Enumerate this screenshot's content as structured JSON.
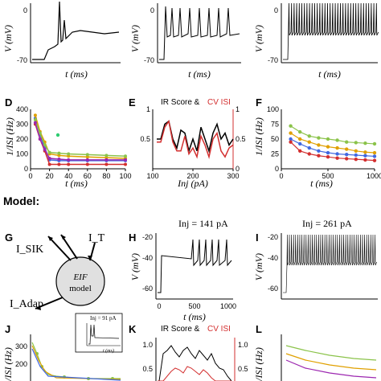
{
  "panels": {
    "top_row": [
      {
        "ylabel": "V (mV)",
        "xlabel": "t (ms)",
        "yticks": [
          "0",
          "-70"
        ]
      },
      {
        "ylabel": "V (mV)",
        "xlabel": "t (ms)",
        "yticks": [
          "0",
          "-70"
        ]
      },
      {
        "ylabel": "V (mV)",
        "xlabel": "t (ms)",
        "yticks": [
          "0",
          "-70"
        ]
      }
    ],
    "D": {
      "label": "D",
      "ylabel": "1/ISI (Hz)",
      "xlabel": "t (ms)"
    },
    "E": {
      "label": "E",
      "title_part1": "IR Score & ",
      "title_part2": "CV ISI",
      "xlabel": "Inj (pA)"
    },
    "F": {
      "label": "F",
      "ylabel": "1/ISI (Hz)",
      "xlabel": "t (ms)"
    },
    "model_heading": "Model:",
    "G": {
      "label": "G",
      "currents": [
        "I_SIK",
        "I_T",
        "I_Adap"
      ],
      "center_top": "EIF",
      "center_bottom": "model"
    },
    "H": {
      "label": "H",
      "title": "Inj = 141 pA",
      "ylabel": "V (mV)",
      "xlabel": "t (ms)"
    },
    "I": {
      "label": "I",
      "title": "Inj = 261 pA",
      "ylabel": "V (mV)"
    },
    "J": {
      "label": "J",
      "inset_title": "Inj = 91 pA",
      "xlabel_inset": "t (ms)",
      "ylabel": "1/ISI (Hz)"
    },
    "K": {
      "label": "K",
      "title_part1": "IR Score & ",
      "title_part2": "CV ISI"
    },
    "L": {
      "label": "L",
      "ylabel": "1/ISI (Hz)"
    }
  },
  "chart_data": [
    {
      "panel": "D",
      "type": "line",
      "xlim": [
        0,
        100
      ],
      "ylim": [
        0,
        400
      ],
      "xticks": [
        0,
        20,
        40,
        60,
        80,
        100
      ],
      "yticks": [
        0,
        100,
        200,
        300,
        400
      ],
      "series": [
        {
          "color": "#4169e1",
          "x": [
            5,
            10,
            15,
            20,
            30,
            40,
            60,
            80,
            100
          ],
          "values": [
            340,
            230,
            140,
            60,
            55,
            55,
            55,
            55,
            55
          ]
        },
        {
          "color": "#d32f2f",
          "x": [
            5,
            10,
            15,
            20,
            30,
            40,
            60,
            80,
            100
          ],
          "values": [
            300,
            200,
            120,
            30,
            30,
            30,
            30,
            30,
            30
          ]
        },
        {
          "color": "#e0a000",
          "x": [
            5,
            10,
            15,
            20,
            30,
            40,
            60,
            80,
            100
          ],
          "values": [
            360,
            250,
            180,
            100,
            90,
            85,
            80,
            75,
            70
          ]
        },
        {
          "color": "#8bc34a",
          "x": [
            5,
            10,
            15,
            20,
            30,
            40,
            60,
            80,
            100
          ],
          "values": [
            330,
            240,
            160,
            110,
            105,
            100,
            95,
            90,
            85
          ]
        },
        {
          "color": "#9c27b0",
          "x": [
            5,
            10,
            15,
            20,
            30,
            40,
            60,
            80,
            100
          ],
          "values": [
            310,
            200,
            130,
            70,
            65,
            60,
            60,
            60,
            60
          ]
        }
      ]
    },
    {
      "panel": "E",
      "type": "line",
      "xlim": [
        100,
        300
      ],
      "ylim_left": [
        0,
        1
      ],
      "ylim_right": [
        0,
        1
      ],
      "xticks": [
        100,
        200,
        300
      ],
      "yticks_left": [
        0.5,
        1
      ],
      "yticks_right": [
        0,
        0.5,
        1
      ],
      "series": [
        {
          "name": "IR Score",
          "color": "#000000",
          "x": [
            110,
            120,
            130,
            140,
            150,
            160,
            170,
            180,
            190,
            200,
            210,
            220,
            230,
            240,
            250,
            260,
            270,
            280,
            290,
            300
          ],
          "values": [
            0.5,
            0.5,
            0.75,
            0.8,
            0.5,
            0.35,
            0.65,
            0.6,
            0.3,
            0.5,
            0.3,
            0.7,
            0.5,
            0.3,
            0.6,
            0.75,
            0.5,
            0.6,
            0.4,
            0.5
          ]
        },
        {
          "name": "CV ISI",
          "color": "#d32f2f",
          "x": [
            110,
            120,
            130,
            140,
            150,
            160,
            170,
            180,
            190,
            200,
            210,
            220,
            230,
            240,
            250,
            260,
            270,
            280,
            290,
            300
          ],
          "values": [
            0.45,
            0.45,
            0.7,
            0.8,
            0.45,
            0.3,
            0.3,
            0.55,
            0.25,
            0.35,
            0.2,
            0.55,
            0.4,
            0.2,
            0.5,
            0.6,
            0.3,
            0.2,
            0.35,
            0.4
          ]
        }
      ]
    },
    {
      "panel": "F",
      "type": "scatter",
      "xlim": [
        0,
        1000
      ],
      "ylim": [
        0,
        100
      ],
      "xticks": [
        0,
        500,
        1000
      ],
      "yticks": [
        0,
        25,
        50,
        75,
        100
      ],
      "series": [
        {
          "color": "#8bc34a",
          "x": [
            100,
            200,
            300,
            400,
            500,
            600,
            700,
            800,
            900,
            1000
          ],
          "values": [
            72,
            62,
            55,
            52,
            50,
            48,
            45,
            44,
            43,
            42
          ]
        },
        {
          "color": "#e0a000",
          "x": [
            100,
            200,
            300,
            400,
            500,
            600,
            700,
            800,
            900,
            1000
          ],
          "values": [
            60,
            50,
            45,
            40,
            37,
            35,
            33,
            30,
            28,
            27
          ]
        },
        {
          "color": "#4169e1",
          "x": [
            100,
            200,
            300,
            400,
            500,
            600,
            700,
            800,
            900,
            1000
          ],
          "values": [
            50,
            42,
            35,
            30,
            27,
            25,
            24,
            23,
            22,
            21
          ]
        },
        {
          "color": "#d32f2f",
          "x": [
            100,
            200,
            300,
            400,
            500,
            600,
            700,
            800,
            900,
            1000
          ],
          "values": [
            45,
            30,
            25,
            22,
            20,
            18,
            17,
            16,
            15,
            14
          ]
        }
      ]
    }
  ]
}
